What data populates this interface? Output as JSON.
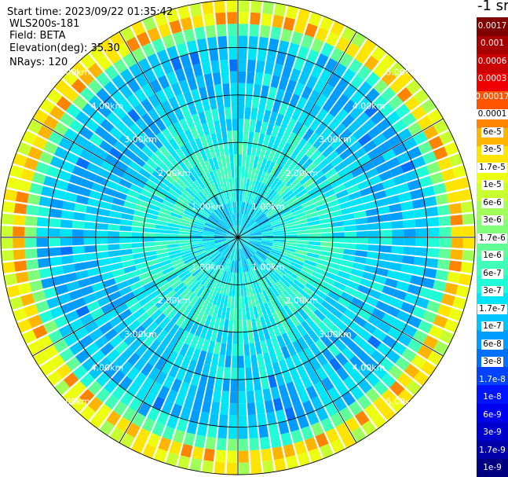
{
  "header": {
    "start_time": "Start time: 2023/09/22 01:35:42",
    "instrument": "WLS200s-181",
    "field": "Field: BETA",
    "elevation": "Elevation(deg): 35.30",
    "nrays": "NRays: 120"
  },
  "colorbar": {
    "title": "-1 sr",
    "colors": [
      "#000080",
      "#0000aa",
      "#0000cd",
      "#0000f0",
      "#0014ff",
      "#0044ff",
      "#0070ff",
      "#009cff",
      "#00c4ff",
      "#00e4f8",
      "#20fcd8",
      "#40ffb8",
      "#60ff98",
      "#80ff78",
      "#a0ff58",
      "#c8ff30",
      "#ecff10",
      "#ffe400",
      "#ffb400",
      "#ff8400",
      "#ff5400",
      "#f00000",
      "#cc0000",
      "#a80000",
      "#800000"
    ],
    "labels": [
      "1e-9",
      "1.7e-9",
      "3e-9",
      "6e-9",
      "1e-8",
      "1.7e-8",
      "3e-8",
      "6e-8",
      "1e-7",
      "1.7e-7",
      "3e-7",
      "6e-7",
      "1e-6",
      "1.7e-6",
      "3e-6",
      "6e-6",
      "1e-5",
      "1.7e-5",
      "3e-5",
      "6e-5",
      "0.0001",
      "0.00017",
      "0.0003",
      "0.0006",
      "0.001",
      "0.0017"
    ]
  },
  "chart_data": {
    "type": "heatmap",
    "projection": "polar-ppi",
    "n_rays": 120,
    "range_max_km": 5.0,
    "range_gates": 20,
    "range_rings_km": [
      1.0,
      2.0,
      3.0,
      4.0,
      5.0
    ],
    "ring_labels": [
      "1.00km",
      "2.00km",
      "3.00km",
      "4.00km",
      "5.00km"
    ],
    "spoke_angles_deg": [
      0,
      30,
      60,
      90,
      120,
      150,
      180,
      210,
      240,
      270,
      300,
      330
    ],
    "radial_profile": {
      "range_km": [
        0.1,
        0.5,
        1.0,
        1.5,
        2.0,
        2.5,
        3.0,
        3.5,
        4.0,
        4.2,
        4.4,
        4.6,
        4.75,
        4.85,
        5.0
      ],
      "color_level": [
        9,
        8,
        10,
        10,
        10,
        9,
        8,
        8,
        8,
        9,
        12,
        17,
        20,
        17,
        10
      ]
    },
    "color_scale": "log10",
    "value_min": 1e-09,
    "value_max": 0.0017
  }
}
